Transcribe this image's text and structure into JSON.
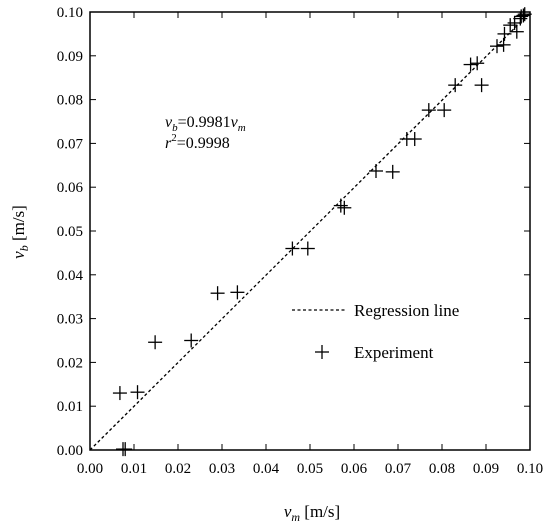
{
  "chart_data": {
    "type": "scatter",
    "xlabel": {
      "var": "v",
      "sub": "m",
      "unit": " [m/s]"
    },
    "ylabel": {
      "var": "v",
      "sub": "b",
      "unit": " [m/s]"
    },
    "xlim": [
      0,
      0.1
    ],
    "ylim": [
      0,
      0.1
    ],
    "grid": false,
    "x_ticks": [
      "0.00",
      "0.01",
      "0.02",
      "0.03",
      "0.04",
      "0.05",
      "0.06",
      "0.07",
      "0.08",
      "0.09",
      "0.10"
    ],
    "y_ticks": [
      "0.00",
      "0.01",
      "0.02",
      "0.03",
      "0.04",
      "0.05",
      "0.06",
      "0.07",
      "0.08",
      "0.09",
      "0.10"
    ],
    "annotation": {
      "eq_var": "v",
      "eq_sub": "b",
      "eq_mid": "=0.9981",
      "eq_var2": "v",
      "eq_sub2": "m",
      "r2_var": "r",
      "r2_sup": "2",
      "r2_val": "=0.9998"
    },
    "legend": {
      "position": "lower-right",
      "regression_label": "Regression line",
      "experiment_label": "Experiment"
    },
    "regression": {
      "name": "Regression line",
      "slope": 0.9981
    },
    "series": [
      {
        "name": "Experiment",
        "marker": "plus",
        "points": [
          [
            0.0068,
            0.013
          ],
          [
            0.0075,
            0.0002
          ],
          [
            0.008,
            0.0002
          ],
          [
            0.0108,
            0.0132
          ],
          [
            0.0148,
            0.0246
          ],
          [
            0.023,
            0.025
          ],
          [
            0.029,
            0.0358
          ],
          [
            0.0335,
            0.036
          ],
          [
            0.046,
            0.046
          ],
          [
            0.0495,
            0.046
          ],
          [
            0.057,
            0.0558
          ],
          [
            0.0578,
            0.0553
          ],
          [
            0.065,
            0.0637
          ],
          [
            0.0688,
            0.0635
          ],
          [
            0.072,
            0.071
          ],
          [
            0.0738,
            0.071
          ],
          [
            0.077,
            0.0776
          ],
          [
            0.0805,
            0.0776
          ],
          [
            0.083,
            0.0833
          ],
          [
            0.0865,
            0.088
          ],
          [
            0.088,
            0.0883
          ],
          [
            0.089,
            0.0833
          ],
          [
            0.0925,
            0.0922
          ],
          [
            0.094,
            0.0925
          ],
          [
            0.0942,
            0.095
          ],
          [
            0.0955,
            0.097
          ],
          [
            0.0965,
            0.0975
          ],
          [
            0.097,
            0.0955
          ],
          [
            0.0978,
            0.0985
          ],
          [
            0.098,
            0.099
          ],
          [
            0.0985,
            0.0992
          ],
          [
            0.0988,
            0.0995
          ]
        ]
      }
    ]
  }
}
